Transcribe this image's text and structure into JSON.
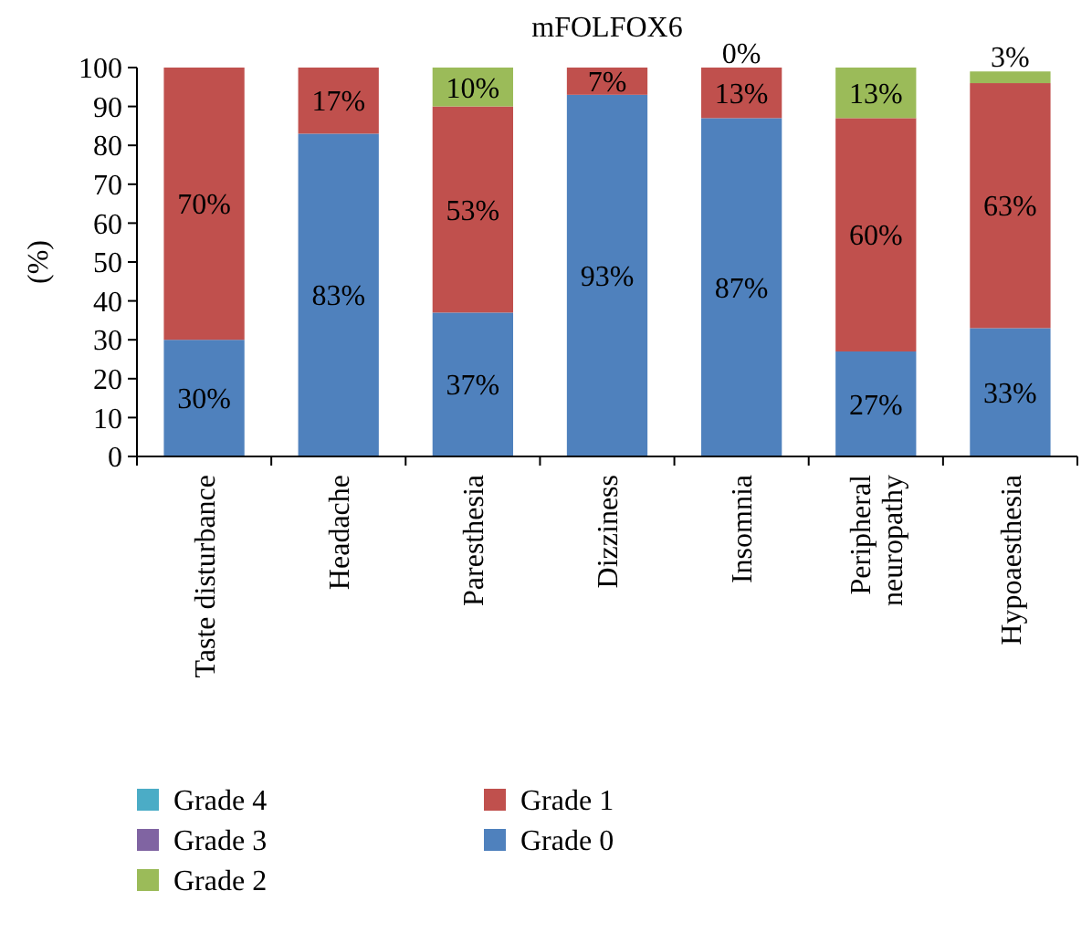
{
  "chart_data": {
    "type": "bar",
    "title": "mFOLFOX6",
    "ylabel": "(%)",
    "stacked": true,
    "categories": [
      "Taste disturbance",
      "Headache",
      "Paresthesia",
      "Dizziness",
      "Insomnia",
      "Peripheral neuropathy",
      "Hypoaesthesia"
    ],
    "series": [
      {
        "name": "Grade 0",
        "color": "#4f81bd",
        "values": [
          30,
          83,
          37,
          93,
          87,
          27,
          33
        ],
        "value_labels": [
          "30%",
          "83%",
          "37%",
          "93%",
          "87%",
          "27%",
          "33%"
        ]
      },
      {
        "name": "Grade 1",
        "color": "#c0504d",
        "values": [
          70,
          17,
          53,
          7,
          13,
          60,
          63
        ],
        "value_labels": [
          "70%",
          "17%",
          "53%",
          "7%",
          "13%",
          "60%",
          "63%"
        ]
      },
      {
        "name": "Grade 2",
        "color": "#9bbb59",
        "values": [
          0,
          0,
          10,
          0,
          0,
          13,
          3
        ],
        "value_labels": [
          null,
          null,
          "10%",
          null,
          "0%",
          "13%",
          "3%"
        ]
      },
      {
        "name": "Grade 3",
        "color": "#8064a2",
        "values": [
          0,
          0,
          0,
          0,
          0,
          0,
          0
        ]
      },
      {
        "name": "Grade 4",
        "color": "#4bacc6",
        "values": [
          0,
          0,
          0,
          0,
          0,
          0,
          0
        ]
      }
    ],
    "ylim": [
      0,
      100
    ],
    "yticks": [
      0,
      10,
      20,
      30,
      40,
      50,
      60,
      70,
      80,
      90,
      100
    ],
    "legend": "bottom"
  }
}
